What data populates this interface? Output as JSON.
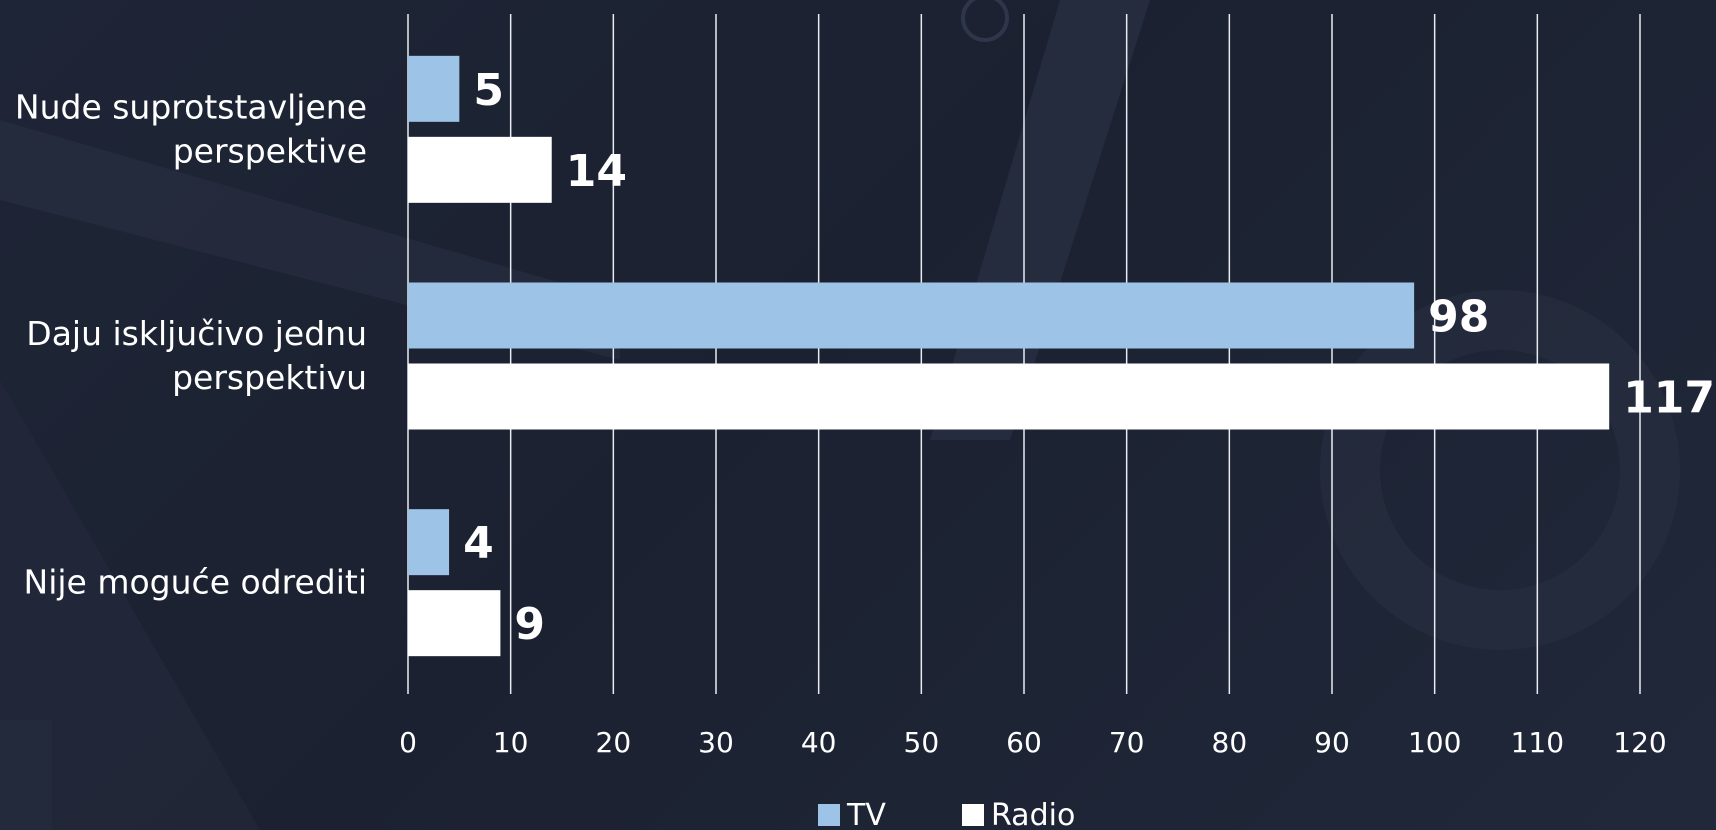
{
  "chart_data": {
    "type": "bar",
    "orientation": "horizontal",
    "categories": [
      [
        "Nude suprotstavljene",
        "perspektive"
      ],
      [
        "Daju isključivo jednu",
        "perspektivu"
      ],
      [
        "Nije moguće odrediti"
      ]
    ],
    "series": [
      {
        "name": "TV",
        "values": [
          5,
          98,
          4
        ],
        "color": "#9dc3e6"
      },
      {
        "name": "Radio",
        "values": [
          14,
          117,
          9
        ],
        "color": "#ffffff"
      }
    ],
    "xlim": [
      0,
      120
    ],
    "x_ticks": [
      "0",
      "10",
      "20",
      "30",
      "40",
      "50",
      "60",
      "70",
      "80",
      "90",
      "100",
      "110",
      "120"
    ],
    "grid": true,
    "legend_position": "bottom",
    "data_labels": true
  }
}
